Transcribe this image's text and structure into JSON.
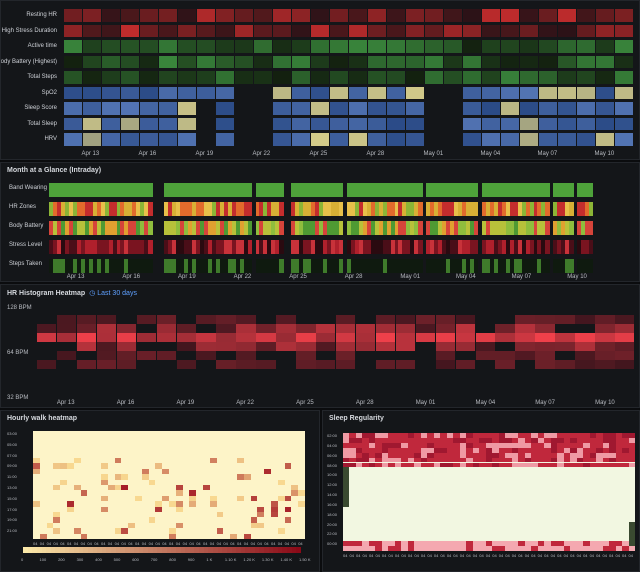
{
  "daily": {
    "rows": [
      {
        "label": "Resting HR",
        "color": "#d32f2f"
      },
      {
        "label": "High Stress Duration",
        "color": "#d32f2f"
      },
      {
        "label": "Active time",
        "color": "#43a047"
      },
      {
        "label": "Body Battery (Highest)",
        "color": "#43a047"
      },
      {
        "label": "Total Steps",
        "color": "#43a047"
      },
      {
        "label": "SpO2",
        "color": "#3d6fc4"
      },
      {
        "label": "Sleep Score",
        "color": "#3d6fc4"
      },
      {
        "label": "Total Sleep",
        "color": "#3d6fc4"
      },
      {
        "label": "HRV",
        "color": "#3d6fc4"
      }
    ],
    "dates": [
      "Apr 13",
      "Apr 16",
      "Apr 19",
      "Apr 22",
      "Apr 25",
      "Apr 28",
      "May 01",
      "May 04",
      "May 07",
      "May 10"
    ]
  },
  "month": {
    "title": "Month at a Glance (Intraday)",
    "rows": [
      {
        "label": "Band Wearing"
      },
      {
        "label": "HR Zones"
      },
      {
        "label": "Body Battery"
      },
      {
        "label": "Stress Level"
      },
      {
        "label": "Steps Taken"
      }
    ],
    "dates": [
      "Apr 13",
      "Apr 16",
      "Apr 19",
      "Apr 22",
      "Apr 25",
      "Apr 28",
      "May 01",
      "May 04",
      "May 07",
      "May 10"
    ]
  },
  "hr_hist": {
    "title": "HR Histogram Heatmap",
    "range_label": "Last 30 days",
    "y_labels": [
      "128 BPM",
      "64 BPM",
      "32 BPM"
    ],
    "dates": [
      "Apr 13",
      "Apr 16",
      "Apr 19",
      "Apr 22",
      "Apr 25",
      "Apr 28",
      "May 01",
      "May 04",
      "May 07",
      "May 10"
    ]
  },
  "walk": {
    "title": "Hourly walk heatmap",
    "y_labels": [
      "03:00",
      "05:00",
      "07:00",
      "09:00",
      "11:00",
      "13:00",
      "15:00",
      "17:00",
      "19:00",
      "21:00"
    ],
    "legend_labels": [
      "0",
      "100",
      "200",
      "300",
      "400",
      "500",
      "600",
      "700",
      "800",
      "900",
      "1 K",
      "1.10 K",
      "1.20 K",
      "1.30 K",
      "1.40 K",
      "1.50 K"
    ]
  },
  "sleep": {
    "title": "Sleep Regularity",
    "y_labels": [
      "02:00",
      "04:00",
      "06:00",
      "08:00",
      "10:00",
      "12:00",
      "14:00",
      "16:00",
      "18:00",
      "20:00",
      "22:00",
      "00:00"
    ]
  }
}
